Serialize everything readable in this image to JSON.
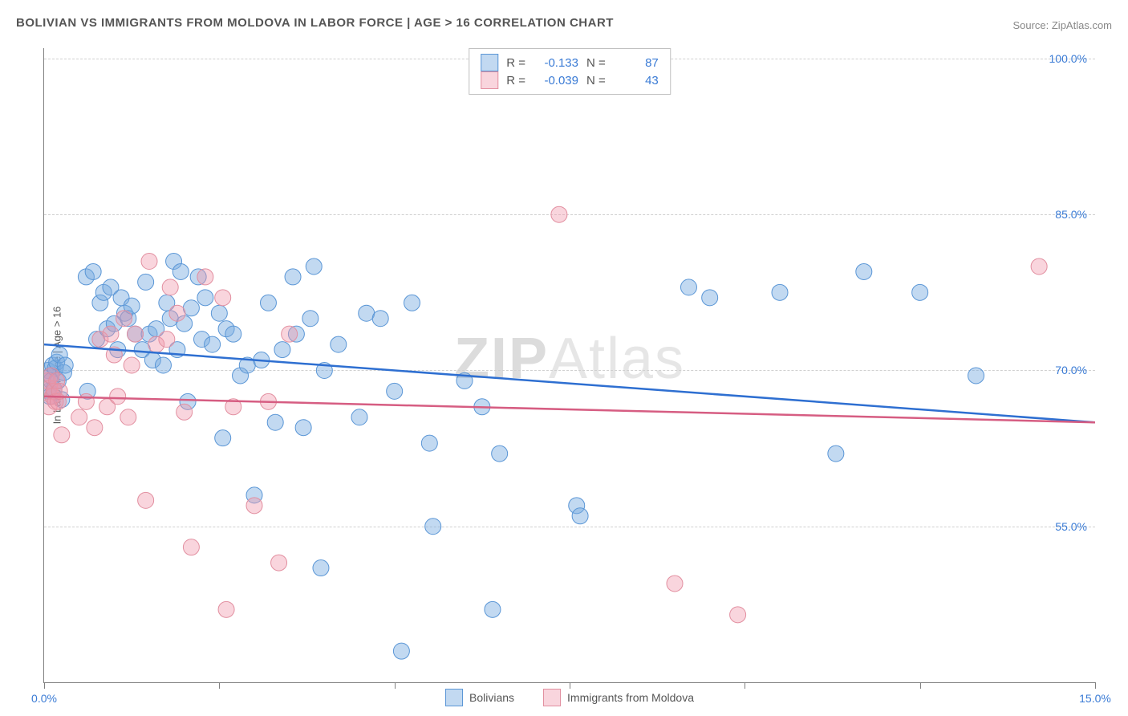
{
  "title": "BOLIVIAN VS IMMIGRANTS FROM MOLDOVA IN LABOR FORCE | AGE > 16 CORRELATION CHART",
  "source_label": "Source: ZipAtlas.com",
  "watermark_a": "ZIP",
  "watermark_b": "Atlas",
  "chart": {
    "type": "scatter",
    "x_min": 0.0,
    "x_max": 15.0,
    "y_min": 40.0,
    "y_max": 101.0,
    "y_ticks": [
      55.0,
      70.0,
      85.0,
      100.0
    ],
    "y_tick_labels": [
      "55.0%",
      "70.0%",
      "85.0%",
      "100.0%"
    ],
    "x_tick_positions": [
      0.0,
      2.5,
      5.0,
      7.5,
      10.0,
      12.5,
      15.0
    ],
    "x_label_min": "0.0%",
    "x_label_max": "15.0%",
    "y_axis_title": "In Labor Force | Age > 16",
    "grid_color": "#d0d0d0",
    "background_color": "#ffffff",
    "point_radius": 10,
    "trend_line_width": 2.5
  },
  "series": [
    {
      "name": "Bolivians",
      "fill_color": "rgba(120,170,225,0.45)",
      "stroke_color": "#5a96d6",
      "line_color": "#2e6fd1",
      "R": "-0.133",
      "N": "87",
      "trend_y_start": 72.5,
      "trend_y_end": 65.0,
      "points": [
        [
          0.05,
          70.0
        ],
        [
          0.06,
          68.0
        ],
        [
          0.08,
          67.5
        ],
        [
          0.09,
          69.5
        ],
        [
          0.1,
          69.0
        ],
        [
          0.12,
          70.5
        ],
        [
          0.14,
          68.2
        ],
        [
          0.16,
          70.2
        ],
        [
          0.18,
          70.8
        ],
        [
          0.2,
          69.0
        ],
        [
          0.22,
          71.5
        ],
        [
          0.25,
          67.2
        ],
        [
          0.28,
          69.8
        ],
        [
          0.3,
          70.5
        ],
        [
          0.6,
          79.0
        ],
        [
          0.62,
          68.0
        ],
        [
          0.7,
          79.5
        ],
        [
          0.75,
          73.0
        ],
        [
          0.8,
          76.5
        ],
        [
          0.85,
          77.5
        ],
        [
          0.9,
          74.0
        ],
        [
          0.95,
          78.0
        ],
        [
          1.0,
          74.5
        ],
        [
          1.05,
          72.0
        ],
        [
          1.1,
          77.0
        ],
        [
          1.15,
          75.5
        ],
        [
          1.2,
          75.0
        ],
        [
          1.25,
          76.2
        ],
        [
          1.3,
          73.5
        ],
        [
          1.4,
          72.0
        ],
        [
          1.45,
          78.5
        ],
        [
          1.5,
          73.5
        ],
        [
          1.55,
          71.0
        ],
        [
          1.6,
          74.0
        ],
        [
          1.7,
          70.5
        ],
        [
          1.75,
          76.5
        ],
        [
          1.8,
          75.0
        ],
        [
          1.85,
          80.5
        ],
        [
          1.9,
          72.0
        ],
        [
          1.95,
          79.5
        ],
        [
          2.0,
          74.5
        ],
        [
          2.05,
          67.0
        ],
        [
          2.1,
          76.0
        ],
        [
          2.2,
          79.0
        ],
        [
          2.25,
          73.0
        ],
        [
          2.3,
          77.0
        ],
        [
          2.4,
          72.5
        ],
        [
          2.5,
          75.5
        ],
        [
          2.55,
          63.5
        ],
        [
          2.6,
          74.0
        ],
        [
          2.7,
          73.5
        ],
        [
          2.8,
          69.5
        ],
        [
          2.9,
          70.5
        ],
        [
          3.0,
          58.0
        ],
        [
          3.1,
          71.0
        ],
        [
          3.2,
          76.5
        ],
        [
          3.3,
          65.0
        ],
        [
          3.4,
          72.0
        ],
        [
          3.55,
          79.0
        ],
        [
          3.6,
          73.5
        ],
        [
          3.7,
          64.5
        ],
        [
          3.8,
          75.0
        ],
        [
          3.85,
          80.0
        ],
        [
          3.95,
          51.0
        ],
        [
          4.0,
          70.0
        ],
        [
          4.2,
          72.5
        ],
        [
          4.5,
          65.5
        ],
        [
          4.6,
          75.5
        ],
        [
          4.8,
          75.0
        ],
        [
          5.0,
          68.0
        ],
        [
          5.1,
          43.0
        ],
        [
          5.25,
          76.5
        ],
        [
          5.5,
          63.0
        ],
        [
          5.55,
          55.0
        ],
        [
          6.0,
          69.0
        ],
        [
          6.25,
          66.5
        ],
        [
          6.4,
          47.0
        ],
        [
          6.5,
          62.0
        ],
        [
          7.6,
          57.0
        ],
        [
          7.65,
          56.0
        ],
        [
          9.2,
          78.0
        ],
        [
          9.5,
          77.0
        ],
        [
          10.5,
          77.5
        ],
        [
          11.3,
          62.0
        ],
        [
          11.7,
          79.5
        ],
        [
          12.5,
          77.5
        ],
        [
          13.3,
          69.5
        ]
      ]
    },
    {
      "name": "Immigrants from Moldova",
      "fill_color": "rgba(240,150,170,0.40)",
      "stroke_color": "#e28fa0",
      "line_color": "#d65d82",
      "R": "-0.039",
      "N": "43",
      "trend_y_start": 67.5,
      "trend_y_end": 65.0,
      "points": [
        [
          0.05,
          69.0
        ],
        [
          0.07,
          66.5
        ],
        [
          0.08,
          68.3
        ],
        [
          0.1,
          69.5
        ],
        [
          0.12,
          67.5
        ],
        [
          0.14,
          68.0
        ],
        [
          0.16,
          67.0
        ],
        [
          0.18,
          69.0
        ],
        [
          0.2,
          67.0
        ],
        [
          0.22,
          68.0
        ],
        [
          0.25,
          63.8
        ],
        [
          0.5,
          65.5
        ],
        [
          0.6,
          67.0
        ],
        [
          0.72,
          64.5
        ],
        [
          0.8,
          73.0
        ],
        [
          0.9,
          66.5
        ],
        [
          0.95,
          73.5
        ],
        [
          1.0,
          71.5
        ],
        [
          1.05,
          67.5
        ],
        [
          1.14,
          75.0
        ],
        [
          1.2,
          65.5
        ],
        [
          1.25,
          70.5
        ],
        [
          1.3,
          73.5
        ],
        [
          1.45,
          57.5
        ],
        [
          1.5,
          80.5
        ],
        [
          1.6,
          72.5
        ],
        [
          1.75,
          73.0
        ],
        [
          1.8,
          78.0
        ],
        [
          1.9,
          75.5
        ],
        [
          2.0,
          66.0
        ],
        [
          2.1,
          53.0
        ],
        [
          2.3,
          79.0
        ],
        [
          2.55,
          77.0
        ],
        [
          2.6,
          47.0
        ],
        [
          2.7,
          66.5
        ],
        [
          3.0,
          57.0
        ],
        [
          3.2,
          67.0
        ],
        [
          3.35,
          51.5
        ],
        [
          3.5,
          73.5
        ],
        [
          7.35,
          85.0
        ],
        [
          9.0,
          49.5
        ],
        [
          9.9,
          46.5
        ],
        [
          14.2,
          80.0
        ]
      ]
    }
  ],
  "legend_labels": {
    "R_key": "R =",
    "N_key": "N ="
  }
}
